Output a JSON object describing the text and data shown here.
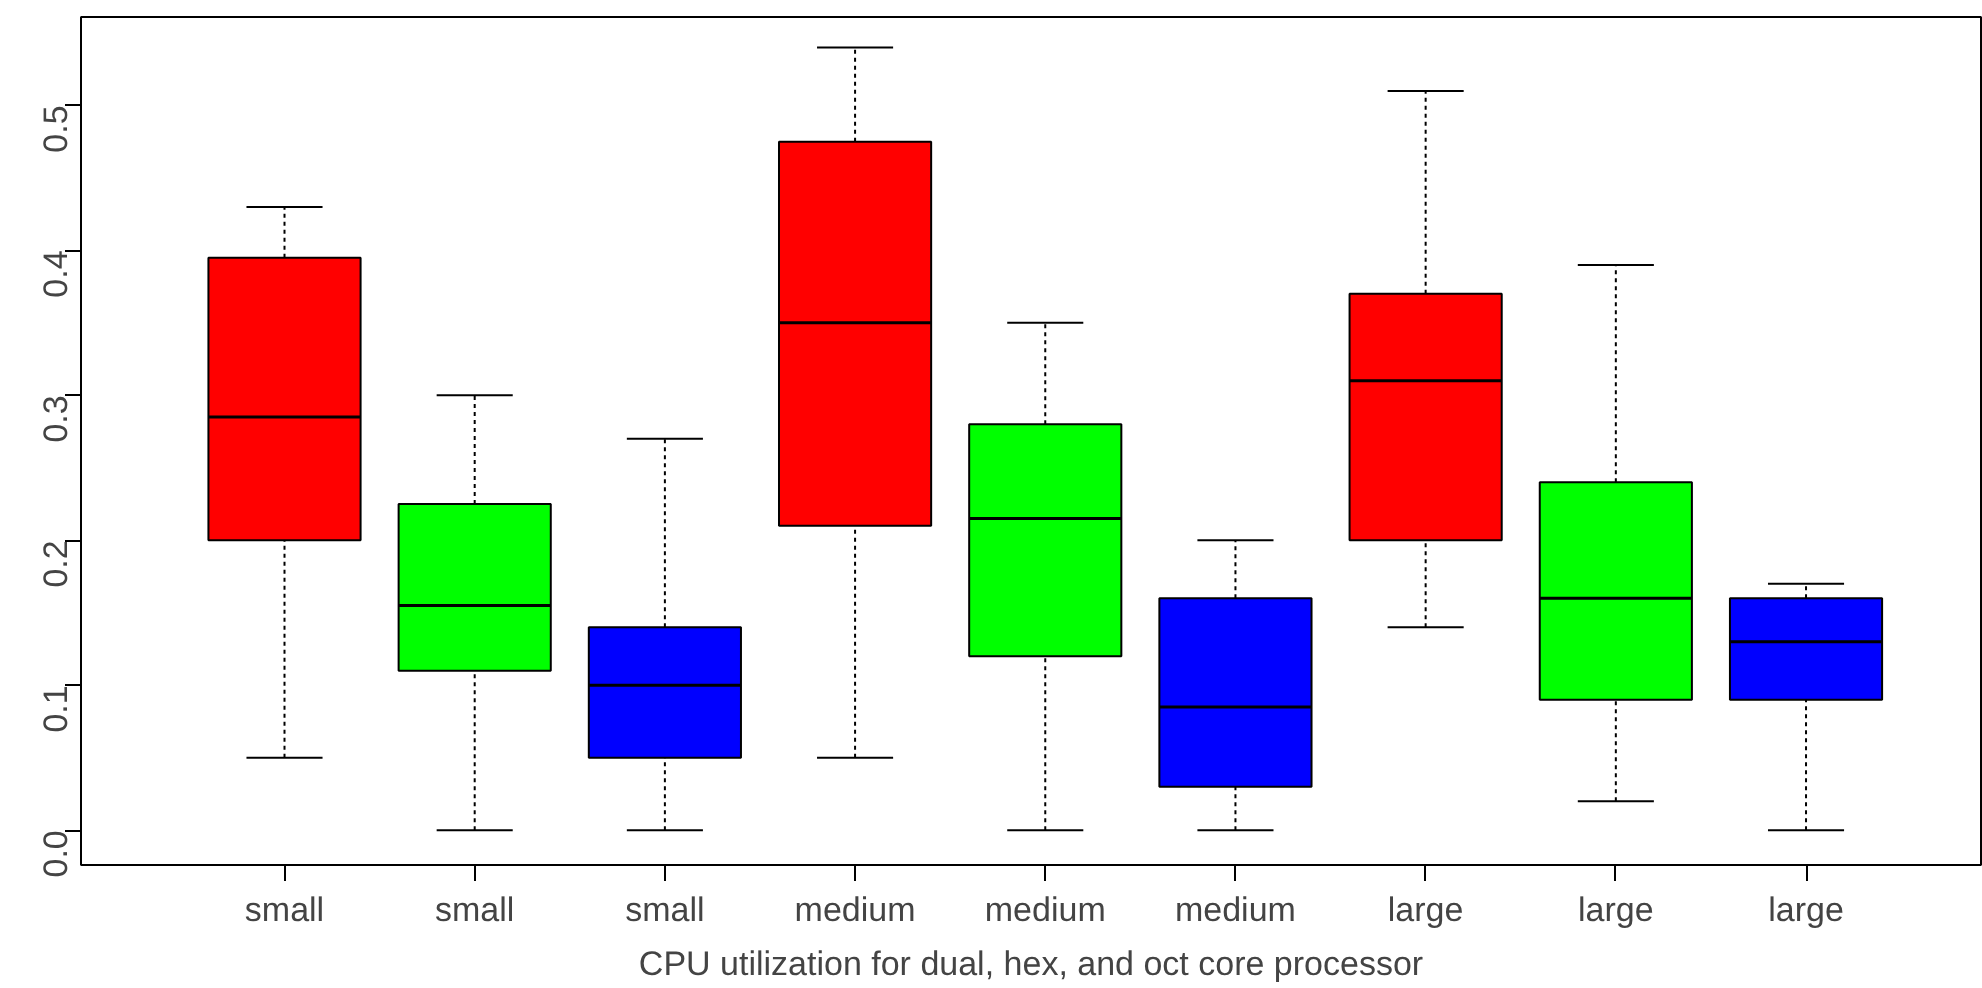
{
  "chart_data": {
    "type": "box",
    "xlabel": "CPU utilization for dual, hex, and oct core processor",
    "categories": [
      "small",
      "small",
      "small",
      "medium",
      "medium",
      "medium",
      "large",
      "large",
      "large"
    ],
    "colors": [
      "#ff0000",
      "#00ff00",
      "#0000ff",
      "#ff0000",
      "#00ff00",
      "#0000ff",
      "#ff0000",
      "#00ff00",
      "#0000ff"
    ],
    "boxes": [
      {
        "low": 0.05,
        "q1": 0.2,
        "median": 0.285,
        "q3": 0.395,
        "high": 0.43
      },
      {
        "low": 0.0,
        "q1": 0.11,
        "median": 0.155,
        "q3": 0.225,
        "high": 0.3
      },
      {
        "low": 0.0,
        "q1": 0.05,
        "median": 0.1,
        "q3": 0.14,
        "high": 0.27
      },
      {
        "low": 0.05,
        "q1": 0.21,
        "median": 0.35,
        "q3": 0.475,
        "high": 0.54
      },
      {
        "low": 0.0,
        "q1": 0.12,
        "median": 0.215,
        "q3": 0.28,
        "high": 0.35
      },
      {
        "low": 0.0,
        "q1": 0.03,
        "median": 0.085,
        "q3": 0.16,
        "high": 0.2
      },
      {
        "low": 0.14,
        "q1": 0.2,
        "median": 0.31,
        "q3": 0.37,
        "high": 0.51
      },
      {
        "low": 0.02,
        "q1": 0.09,
        "median": 0.16,
        "q3": 0.24,
        "high": 0.39
      },
      {
        "low": 0.0,
        "q1": 0.09,
        "median": 0.13,
        "q3": 0.16,
        "high": 0.17
      }
    ],
    "ylim": [
      -0.024,
      0.561
    ],
    "yticks": [
      {
        "value": 0,
        "label": "0.0"
      },
      0.1,
      0.2,
      0.3,
      0.4,
      0.5
    ],
    "grid": false
  }
}
